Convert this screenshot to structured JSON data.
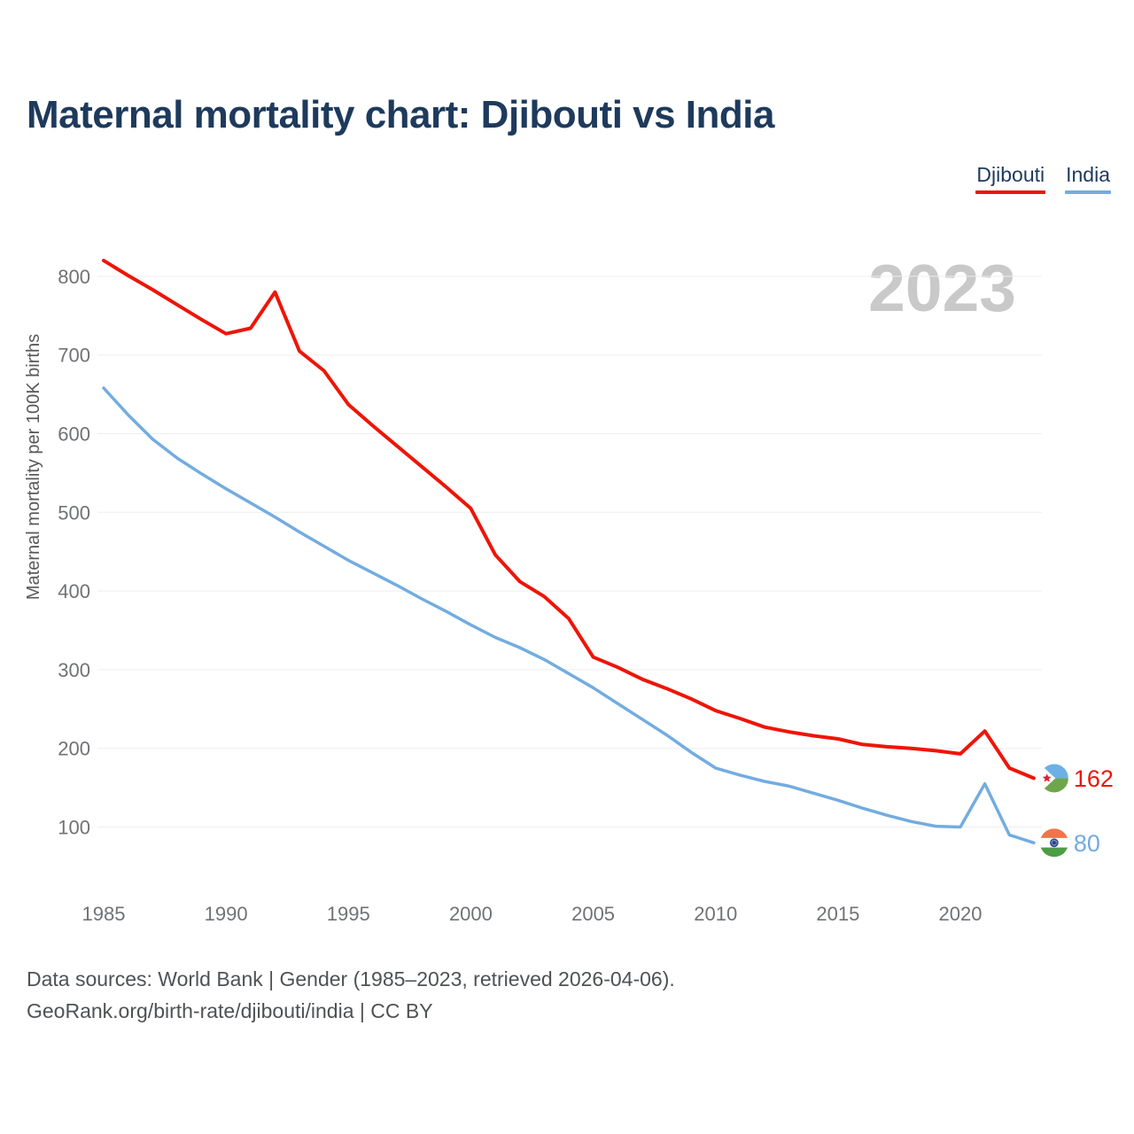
{
  "title": "Maternal mortality chart: Djibouti vs India",
  "legend": {
    "items": [
      {
        "label": "Djibouti",
        "color": "#ee1507"
      },
      {
        "label": "India",
        "color": "#73ace0"
      }
    ]
  },
  "watermark": "2023",
  "footer": {
    "line1": "Data sources: World Bank | Gender (1985–2023, retrieved 2026-04-06).",
    "line2": "GeoRank.org/birth-rate/djibouti/india | CC BY"
  },
  "chart_data": {
    "type": "line",
    "title": "Maternal mortality chart: Djibouti vs India",
    "xlabel": "",
    "ylabel": "Maternal mortality per 100K births",
    "x_ticks": [
      1985,
      1990,
      1995,
      2000,
      2005,
      2010,
      2015,
      2020
    ],
    "y_ticks": [
      100,
      200,
      300,
      400,
      500,
      600,
      700,
      800
    ],
    "xlim": [
      1985,
      2023.8
    ],
    "ylim": [
      60,
      840
    ],
    "grid": true,
    "legend_position": "top-right",
    "x": [
      1985,
      1986,
      1987,
      1988,
      1989,
      1990,
      1991,
      1992,
      1993,
      1994,
      1995,
      1996,
      1997,
      1998,
      1999,
      2000,
      2001,
      2002,
      2003,
      2004,
      2005,
      2006,
      2007,
      2008,
      2009,
      2010,
      2011,
      2012,
      2013,
      2014,
      2015,
      2016,
      2017,
      2018,
      2019,
      2020,
      2021,
      2022,
      2023
    ],
    "series": [
      {
        "name": "Djibouti",
        "color": "#ee1507",
        "values": [
          820,
          801,
          783,
          764,
          745,
          727,
          734,
          780,
          705,
          680,
          637,
          610,
          584,
          558,
          532,
          505,
          446,
          412,
          393,
          365,
          316,
          303,
          288,
          276,
          263,
          248,
          238,
          227,
          221,
          216,
          212,
          205,
          202,
          200,
          197,
          193,
          222,
          175,
          162
        ]
      },
      {
        "name": "India",
        "color": "#73ace0",
        "values": [
          658,
          624,
          593,
          569,
          549,
          530,
          512,
          494,
          475,
          457,
          439,
          423,
          407,
          390,
          374,
          357,
          341,
          328,
          313,
          295,
          277,
          257,
          237,
          217,
          195,
          175,
          166,
          158,
          152,
          143,
          134,
          124,
          115,
          107,
          101,
          100,
          155,
          90,
          80
        ]
      }
    ],
    "end_labels": [
      {
        "series": "Djibouti",
        "text": "162",
        "flag": "djibouti-flag-icon"
      },
      {
        "series": "India",
        "text": "80",
        "flag": "india-flag-icon"
      }
    ]
  },
  "ui_colors": {
    "tick": "#707276",
    "axis_title": "#57595c",
    "gridline": "#ededed",
    "watermark": "#c9c9c9",
    "navy": "#1e3a5c"
  }
}
